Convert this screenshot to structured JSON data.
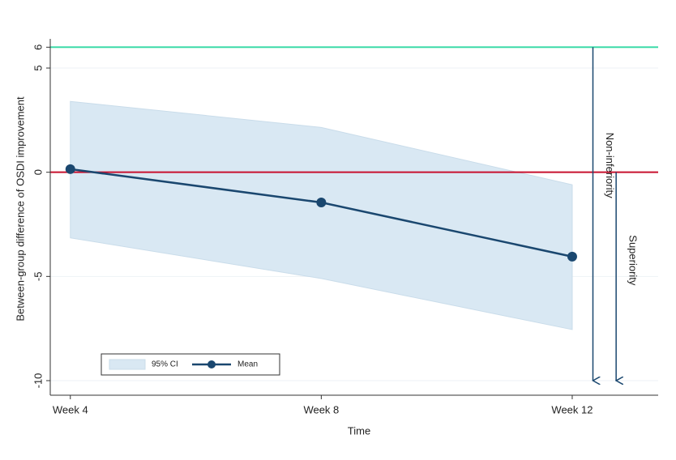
{
  "chart_data": {
    "type": "line",
    "x": [
      4,
      8,
      12
    ],
    "xlim": [
      3.68,
      13.37
    ],
    "xticks": [
      {
        "value": 4,
        "label": "Week 4"
      },
      {
        "value": 8,
        "label": "Week 8"
      },
      {
        "value": 12,
        "label": "Week 12"
      }
    ],
    "ylim": [
      -10.7,
      6.4
    ],
    "yticks": [
      -10,
      -5,
      0,
      5,
      6
    ],
    "grid": true,
    "xlabel": "Time",
    "ylabel": "Between-group difference of OSDI improvement",
    "series": [
      {
        "name": "Mean",
        "color": "#1a476f",
        "values": [
          0.15,
          -1.45,
          -4.05
        ]
      }
    ],
    "band": {
      "name": "95% CI",
      "color": "#d9e8f3",
      "upper": [
        3.4,
        2.15,
        -0.6
      ],
      "lower": [
        -3.15,
        -5.1,
        -7.55
      ]
    },
    "reference_lines": [
      {
        "value": 6,
        "color": "#3ddba8"
      },
      {
        "value": 0,
        "color": "#c8102e"
      }
    ],
    "annotations": [
      {
        "label": "Non-inferiority",
        "x": 12.33,
        "y_from": 6,
        "y_to": -10
      },
      {
        "label": "Superiority",
        "x": 12.7,
        "y_from": 0,
        "y_to": -10
      }
    ],
    "legend_position": "bottom-left"
  }
}
